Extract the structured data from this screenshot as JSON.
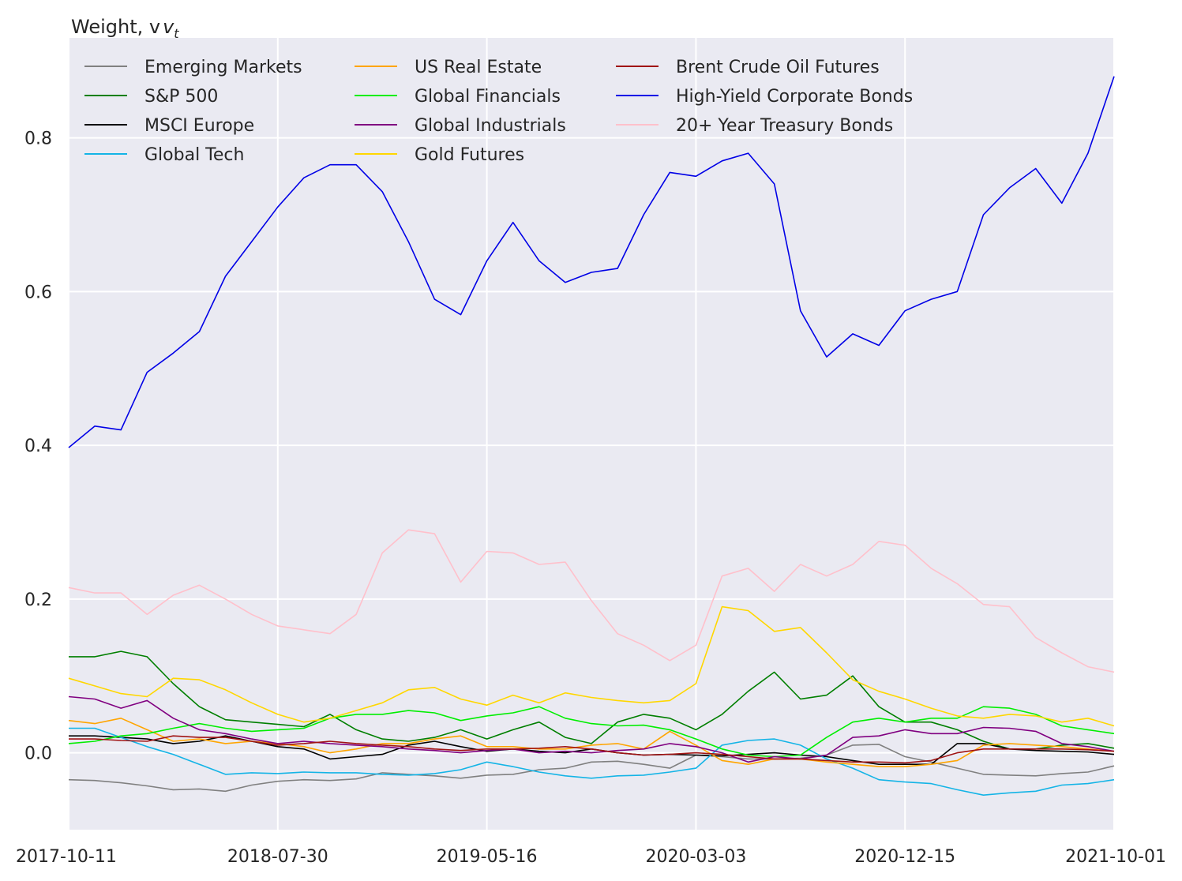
{
  "chart_data": {
    "type": "line",
    "ylabel": "Weight, v",
    "ylabel_subscript": "t",
    "xlabel": "",
    "ylim": [
      -0.1,
      0.93
    ],
    "grid": true,
    "legend": "top-left",
    "x_ticks": [
      "2017-10-11",
      "2018-07-30",
      "2019-05-16",
      "2020-03-03",
      "2020-12-15",
      "2021-10-01"
    ],
    "y_ticks": [
      "0.0",
      "0.2",
      "0.4",
      "0.6",
      "0.8"
    ],
    "y_tick_values": [
      0.0,
      0.2,
      0.4,
      0.6,
      0.8
    ],
    "x_count": 41,
    "x": [
      "2017-10-11",
      "2017-11-16",
      "2017-12-22",
      "2018-01-27",
      "2018-03-04",
      "2018-04-09",
      "2018-05-15",
      "2018-06-20",
      "2018-07-26",
      "2018-08-31",
      "2018-10-06",
      "2018-11-11",
      "2018-12-17",
      "2019-01-22",
      "2019-02-27",
      "2019-04-04",
      "2019-05-10",
      "2019-06-15",
      "2019-07-21",
      "2019-08-26",
      "2019-10-01",
      "2019-11-06",
      "2019-12-12",
      "2020-01-17",
      "2020-02-22",
      "2020-03-29",
      "2020-05-04",
      "2020-06-09",
      "2020-07-15",
      "2020-08-20",
      "2020-09-25",
      "2020-10-31",
      "2020-12-06",
      "2021-01-11",
      "2021-02-16",
      "2021-03-24",
      "2021-04-29",
      "2021-06-04",
      "2021-07-10",
      "2021-08-15",
      "2021-10-01"
    ],
    "series": [
      {
        "name": "Emerging Markets",
        "color": "#808080",
        "values": [
          -0.035,
          -0.036,
          -0.039,
          -0.043,
          -0.048,
          -0.047,
          -0.05,
          -0.042,
          -0.037,
          -0.035,
          -0.036,
          -0.034,
          -0.026,
          -0.028,
          -0.03,
          -0.033,
          -0.029,
          -0.028,
          -0.022,
          -0.02,
          -0.012,
          -0.011,
          -0.015,
          -0.02,
          -0.003,
          -0.005,
          -0.008,
          -0.008,
          -0.007,
          -0.003,
          0.01,
          0.011,
          -0.005,
          -0.012,
          -0.02,
          -0.028,
          -0.029,
          -0.03,
          -0.027,
          -0.025,
          -0.017
        ]
      },
      {
        "name": "S&P 500",
        "color": "#007f00",
        "values": [
          0.125,
          0.125,
          0.132,
          0.125,
          0.09,
          0.06,
          0.043,
          0.04,
          0.037,
          0.034,
          0.05,
          0.03,
          0.018,
          0.015,
          0.02,
          0.03,
          0.018,
          0.03,
          0.04,
          0.02,
          0.012,
          0.04,
          0.05,
          0.045,
          0.03,
          0.05,
          0.08,
          0.105,
          0.07,
          0.075,
          0.1,
          0.06,
          0.04,
          0.04,
          0.03,
          0.015,
          0.005,
          0.005,
          0.01,
          0.012,
          0.006
        ]
      },
      {
        "name": "MSCI Europe",
        "color": "#000000",
        "values": [
          0.022,
          0.022,
          0.02,
          0.018,
          0.012,
          0.015,
          0.022,
          0.015,
          0.008,
          0.005,
          -0.008,
          -0.005,
          -0.002,
          0.01,
          0.015,
          0.008,
          0.002,
          0.005,
          0.002,
          0.0,
          0.005,
          0.0,
          -0.003,
          -0.002,
          -0.003,
          -0.004,
          -0.002,
          0.0,
          -0.003,
          -0.005,
          -0.01,
          -0.015,
          -0.015,
          -0.015,
          0.012,
          0.012,
          0.005,
          0.003,
          0.002,
          0.001,
          -0.002
        ]
      },
      {
        "name": "Global Tech",
        "color": "#14b4e6",
        "values": [
          0.032,
          0.032,
          0.02,
          0.008,
          -0.002,
          -0.015,
          -0.028,
          -0.026,
          -0.027,
          -0.025,
          -0.026,
          -0.026,
          -0.028,
          -0.029,
          -0.027,
          -0.022,
          -0.012,
          -0.018,
          -0.025,
          -0.03,
          -0.033,
          -0.03,
          -0.029,
          -0.025,
          -0.02,
          0.01,
          0.016,
          0.018,
          0.01,
          -0.008,
          -0.02,
          -0.035,
          -0.038,
          -0.04,
          -0.048,
          -0.055,
          -0.052,
          -0.05,
          -0.042,
          -0.04,
          -0.035
        ]
      },
      {
        "name": "US Real Estate",
        "color": "#ffa500",
        "values": [
          0.042,
          0.038,
          0.045,
          0.03,
          0.015,
          0.018,
          0.012,
          0.015,
          0.012,
          0.008,
          0.0,
          0.005,
          0.012,
          0.012,
          0.018,
          0.022,
          0.008,
          0.008,
          0.005,
          0.005,
          0.01,
          0.012,
          0.005,
          0.028,
          0.01,
          -0.01,
          -0.015,
          -0.008,
          -0.008,
          -0.012,
          -0.015,
          -0.018,
          -0.018,
          -0.015,
          -0.01,
          0.01,
          0.012,
          0.01,
          0.008,
          0.005,
          0.002
        ]
      },
      {
        "name": "Global Financials",
        "color": "#00ee00",
        "values": [
          0.012,
          0.015,
          0.022,
          0.025,
          0.032,
          0.038,
          0.032,
          0.028,
          0.03,
          0.032,
          0.045,
          0.05,
          0.05,
          0.055,
          0.052,
          0.042,
          0.048,
          0.052,
          0.06,
          0.045,
          0.038,
          0.035,
          0.036,
          0.03,
          0.018,
          0.005,
          -0.003,
          -0.005,
          -0.003,
          0.02,
          0.04,
          0.045,
          0.04,
          0.045,
          0.045,
          0.06,
          0.058,
          0.05,
          0.035,
          0.03,
          0.025
        ]
      },
      {
        "name": "Global Industrials",
        "color": "#800080",
        "values": [
          0.073,
          0.07,
          0.058,
          0.068,
          0.045,
          0.03,
          0.025,
          0.018,
          0.012,
          0.015,
          0.012,
          0.01,
          0.008,
          0.005,
          0.003,
          0.0,
          0.003,
          0.005,
          0.0,
          0.002,
          0.0,
          0.003,
          0.005,
          0.012,
          0.008,
          0.0,
          -0.012,
          -0.005,
          -0.008,
          -0.003,
          0.02,
          0.022,
          0.03,
          0.025,
          0.025,
          0.033,
          0.032,
          0.028,
          0.012,
          0.008,
          0.002
        ]
      },
      {
        "name": "Gold Futures",
        "color": "#ffd700",
        "values": [
          0.097,
          0.087,
          0.077,
          0.073,
          0.097,
          0.095,
          0.082,
          0.065,
          0.05,
          0.04,
          0.045,
          0.055,
          0.065,
          0.082,
          0.085,
          0.07,
          0.062,
          0.075,
          0.065,
          0.078,
          0.072,
          0.068,
          0.065,
          0.068,
          0.09,
          0.19,
          0.185,
          0.158,
          0.163,
          0.13,
          0.095,
          0.08,
          0.07,
          0.058,
          0.048,
          0.045,
          0.05,
          0.048,
          0.04,
          0.045,
          0.035
        ]
      },
      {
        "name": "Brent Crude Oil Futures",
        "color": "#a01414",
        "values": [
          0.018,
          0.018,
          0.016,
          0.015,
          0.022,
          0.02,
          0.02,
          0.015,
          0.01,
          0.012,
          0.015,
          0.012,
          0.01,
          0.008,
          0.005,
          0.003,
          0.005,
          0.005,
          0.006,
          0.008,
          0.005,
          0.0,
          -0.003,
          -0.002,
          0.0,
          -0.002,
          -0.005,
          -0.008,
          -0.008,
          -0.01,
          -0.012,
          -0.012,
          -0.013,
          -0.01,
          0.0,
          0.005,
          0.005,
          0.005,
          0.005,
          0.004,
          0.002
        ]
      },
      {
        "name": "High-Yield Corporate Bonds",
        "color": "#0000e6",
        "values": [
          0.397,
          0.425,
          0.42,
          0.495,
          0.52,
          0.548,
          0.62,
          0.665,
          0.71,
          0.748,
          0.765,
          0.765,
          0.73,
          0.665,
          0.59,
          0.57,
          0.64,
          0.69,
          0.64,
          0.612,
          0.625,
          0.63,
          0.7,
          0.755,
          0.75,
          0.77,
          0.78,
          0.74,
          0.575,
          0.515,
          0.545,
          0.53,
          0.575,
          0.59,
          0.6,
          0.7,
          0.735,
          0.76,
          0.715,
          0.78,
          0.88
        ]
      },
      {
        "name": "20+ Year Treasury Bonds",
        "color": "#ffc0cb",
        "values": [
          0.215,
          0.208,
          0.208,
          0.18,
          0.205,
          0.218,
          0.2,
          0.18,
          0.165,
          0.16,
          0.155,
          0.18,
          0.26,
          0.29,
          0.285,
          0.222,
          0.262,
          0.26,
          0.245,
          0.248,
          0.198,
          0.155,
          0.14,
          0.12,
          0.14,
          0.23,
          0.24,
          0.21,
          0.245,
          0.23,
          0.245,
          0.275,
          0.27,
          0.24,
          0.22,
          0.193,
          0.19,
          0.15,
          0.13,
          0.112,
          0.105
        ]
      }
    ]
  }
}
